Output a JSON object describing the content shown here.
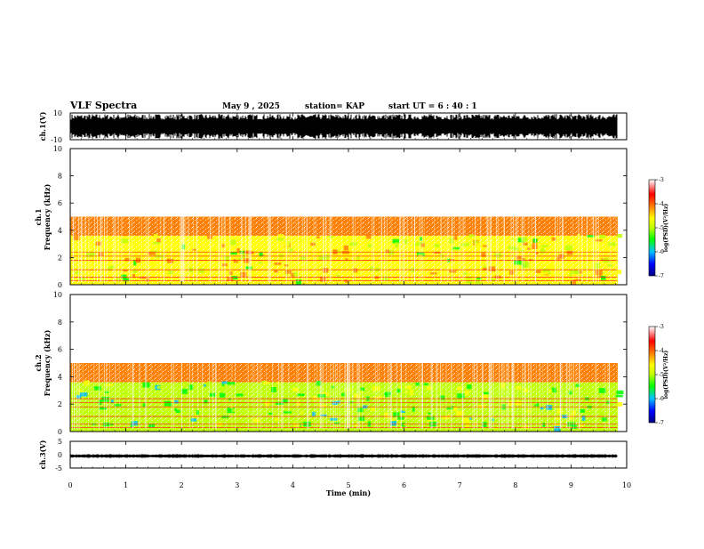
{
  "header": {
    "title": "VLF Spectra",
    "date": "May 9  , 2025",
    "station": "station= KAP",
    "start": "start  UT  =   6  : 40 : 1"
  },
  "chart_data": [
    {
      "type": "line",
      "name_label": "ch.1(V)",
      "ylabel": "ch.1(V)",
      "ylim": [
        -10,
        10
      ],
      "yticks": [
        "10",
        "-10"
      ],
      "x_range": [
        0,
        9.83
      ],
      "envelope": "dense broadband noise spanning nearly full ±10 V range"
    },
    {
      "type": "heatmap",
      "ylabel_top": "ch.1",
      "ylabel": "Frequency  (kHz)",
      "ylim": [
        0,
        10
      ],
      "yticks": [
        "0",
        "2",
        "4",
        "6",
        "8",
        "10"
      ],
      "x_range": [
        0,
        9.83
      ],
      "bands": [
        {
          "from_khz": 0,
          "to_khz": 3.6,
          "level": -4.6
        },
        {
          "from_khz": 3.6,
          "to_khz": 5.0,
          "level": -3.8
        },
        {
          "from_khz": 5.0,
          "to_khz": 10,
          "level": -3.2
        }
      ]
    },
    {
      "type": "heatmap",
      "ylabel_top": "ch.2",
      "ylabel": "Frequency  (kHz)",
      "ylim": [
        0,
        10
      ],
      "yticks": [
        "0",
        "2",
        "4",
        "6",
        "8",
        "10"
      ],
      "x_range": [
        0,
        9.83
      ],
      "bands": [
        {
          "from_khz": 0,
          "to_khz": 3.6,
          "level": -5.1
        },
        {
          "from_khz": 3.6,
          "to_khz": 5.0,
          "level": -3.9
        },
        {
          "from_khz": 5.0,
          "to_khz": 10,
          "level": -3.2
        }
      ]
    },
    {
      "type": "line",
      "ylabel": "ch.3(V)",
      "ylim": [
        -5,
        5
      ],
      "yticks": [
        "5",
        "0",
        "-5"
      ],
      "x_range": [
        0,
        9.83
      ],
      "envelope": "narrow near-constant band at about -0.5 V"
    }
  ],
  "xaxis": {
    "label": "Time  (min)",
    "ticks": [
      "0",
      "1",
      "2",
      "3",
      "4",
      "5",
      "6",
      "7",
      "8",
      "9",
      "10"
    ],
    "range": [
      0,
      10
    ]
  },
  "colorbar": {
    "label": "log(PSD)(V²/Hz)",
    "ticks": [
      "-3",
      "-4",
      "-5",
      "-6",
      "-7"
    ],
    "range": [
      -7,
      -3
    ],
    "colors": [
      "#000080",
      "#0000ff",
      "#00c0ff",
      "#00ff00",
      "#c0ff00",
      "#ffff00",
      "#ff8000",
      "#ff0000",
      "#ffffff"
    ]
  }
}
